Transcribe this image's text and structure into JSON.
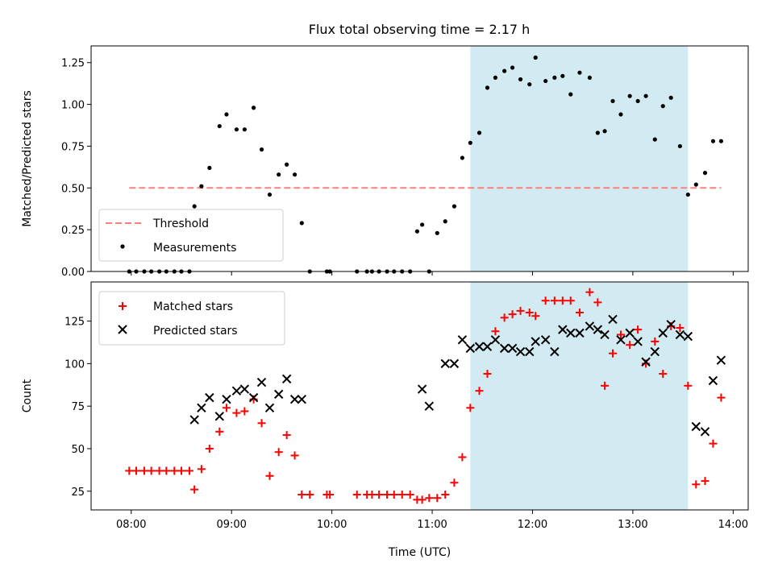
{
  "title": "Flux total observing time = 2.17 h",
  "colors": {
    "threshold": "#ff7f7f",
    "measurement": "#000000",
    "matched": "#ff0000",
    "predicted": "#000000",
    "shade": "#add8e6"
  },
  "chart_data": [
    {
      "type": "scatter",
      "panel": "top",
      "ylabel": "Matched/Predicted stars",
      "xlabel": "",
      "xlim": [
        7.6,
        14.15
      ],
      "ylim": [
        0,
        1.35
      ],
      "yticks": [
        0.0,
        0.25,
        0.5,
        0.75,
        1.0,
        1.25
      ],
      "ytick_labels": [
        "0.00",
        "0.25",
        "0.50",
        "0.75",
        "1.00",
        "1.25"
      ],
      "xticks": [
        8,
        9,
        10,
        11,
        12,
        13,
        14
      ],
      "shaded_x_range": [
        11.38,
        13.55
      ],
      "legend": {
        "position": "lower-left",
        "threshold_label": "Threshold",
        "measurement_label": "Measurements"
      },
      "threshold": {
        "value": 0.5,
        "x": [
          7.98,
          13.88
        ]
      },
      "series": [
        {
          "name": "Measurements",
          "x": [
            7.98,
            8.05,
            8.13,
            8.2,
            8.28,
            8.35,
            8.43,
            8.5,
            8.58,
            8.63,
            8.7,
            8.78,
            8.88,
            8.95,
            9.05,
            9.13,
            9.22,
            9.3,
            9.38,
            9.47,
            9.55,
            9.63,
            9.7,
            9.78,
            9.95,
            9.98,
            10.25,
            10.35,
            10.4,
            10.47,
            10.55,
            10.62,
            10.7,
            10.78,
            10.85,
            10.9,
            10.97,
            11.05,
            11.13,
            11.22,
            11.3,
            11.38,
            11.47,
            11.55,
            11.63,
            11.72,
            11.8,
            11.88,
            11.97,
            12.03,
            12.13,
            12.22,
            12.3,
            12.38,
            12.47,
            12.57,
            12.65,
            12.72,
            12.8,
            12.88,
            12.97,
            13.05,
            13.13,
            13.22,
            13.3,
            13.38,
            13.47,
            13.55,
            13.63,
            13.72,
            13.8,
            13.88
          ],
          "values": [
            0,
            0,
            0,
            0,
            0,
            0,
            0,
            0,
            0,
            0.39,
            0.51,
            0.62,
            0.87,
            0.94,
            0.85,
            0.85,
            0.98,
            0.73,
            0.46,
            0.58,
            0.64,
            0.58,
            0.29,
            0,
            0,
            0,
            0,
            0,
            0,
            0,
            0,
            0,
            0,
            0,
            0.24,
            0.28,
            0,
            0.23,
            0.3,
            0.39,
            0.68,
            0.77,
            0.83,
            1.1,
            1.16,
            1.2,
            1.22,
            1.15,
            1.12,
            1.28,
            1.14,
            1.16,
            1.17,
            1.06,
            1.19,
            1.16,
            0.83,
            0.84,
            1.02,
            0.94,
            1.05,
            1.02,
            1.05,
            0.79,
            0.99,
            1.04,
            0.75,
            0.46,
            0.52,
            0.59,
            0.78,
            0.78
          ]
        }
      ]
    },
    {
      "type": "scatter",
      "panel": "bottom",
      "ylabel": "Count",
      "xlabel": "Time (UTC)",
      "xlim": [
        7.6,
        14.15
      ],
      "ylim": [
        14,
        148
      ],
      "yticks": [
        25,
        50,
        75,
        100,
        125
      ],
      "ytick_labels": [
        "25",
        "50",
        "75",
        "100",
        "125"
      ],
      "xticks": [
        8,
        9,
        10,
        11,
        12,
        13,
        14
      ],
      "xtick_labels": [
        "08:00",
        "09:00",
        "10:00",
        "11:00",
        "12:00",
        "13:00",
        "14:00"
      ],
      "shaded_x_range": [
        11.38,
        13.55
      ],
      "legend": {
        "position": "upper-left"
      },
      "series": [
        {
          "name": "Matched stars",
          "marker": "plus",
          "x": [
            7.98,
            8.05,
            8.13,
            8.2,
            8.28,
            8.35,
            8.43,
            8.5,
            8.58,
            8.63,
            8.7,
            8.78,
            8.88,
            8.95,
            9.05,
            9.13,
            9.22,
            9.3,
            9.38,
            9.47,
            9.55,
            9.63,
            9.7,
            9.78,
            9.95,
            9.98,
            10.25,
            10.35,
            10.4,
            10.47,
            10.55,
            10.62,
            10.7,
            10.78,
            10.85,
            10.9,
            10.97,
            11.05,
            11.13,
            11.22,
            11.3,
            11.38,
            11.47,
            11.55,
            11.63,
            11.72,
            11.8,
            11.88,
            11.97,
            12.03,
            12.13,
            12.22,
            12.3,
            12.38,
            12.47,
            12.57,
            12.65,
            12.72,
            12.8,
            12.88,
            12.97,
            13.05,
            13.13,
            13.22,
            13.3,
            13.38,
            13.47,
            13.55,
            13.63,
            13.72,
            13.8,
            13.88
          ],
          "values": [
            37,
            37,
            37,
            37,
            37,
            37,
            37,
            37,
            37,
            26,
            38,
            50,
            60,
            74,
            71,
            72,
            79,
            65,
            34,
            48,
            58,
            46,
            23,
            23,
            23,
            23,
            23,
            23,
            23,
            23,
            23,
            23,
            23,
            23,
            20,
            20,
            21,
            21,
            23,
            30,
            45,
            74,
            84,
            94,
            119,
            127,
            129,
            131,
            130,
            128,
            137,
            137,
            137,
            137,
            130,
            142,
            136,
            87,
            106,
            117,
            111,
            120,
            100,
            113,
            94,
            122,
            121,
            87,
            29,
            31,
            53,
            80
          ]
        },
        {
          "name": "Predicted stars",
          "marker": "x",
          "x": [
            8.63,
            8.7,
            8.78,
            8.88,
            8.95,
            9.05,
            9.13,
            9.22,
            9.3,
            9.38,
            9.47,
            9.55,
            9.63,
            9.7,
            10.9,
            10.97,
            11.13,
            11.22,
            11.3,
            11.38,
            11.47,
            11.55,
            11.63,
            11.72,
            11.8,
            11.88,
            11.97,
            12.03,
            12.13,
            12.22,
            12.3,
            12.38,
            12.47,
            12.57,
            12.65,
            12.72,
            12.8,
            12.88,
            12.97,
            13.05,
            13.13,
            13.22,
            13.3,
            13.38,
            13.47,
            13.55,
            13.63,
            13.72,
            13.8,
            13.88
          ],
          "values": [
            67,
            74,
            80,
            69,
            79,
            84,
            85,
            80,
            89,
            74,
            82,
            91,
            79,
            79,
            85,
            75,
            100,
            100,
            114,
            109,
            110,
            110,
            114,
            109,
            109,
            107,
            107,
            113,
            114,
            107,
            120,
            118,
            118,
            122,
            120,
            117,
            126,
            114,
            118,
            113,
            101,
            107,
            118,
            123,
            117,
            116,
            63,
            60,
            90,
            102
          ]
        }
      ]
    }
  ]
}
